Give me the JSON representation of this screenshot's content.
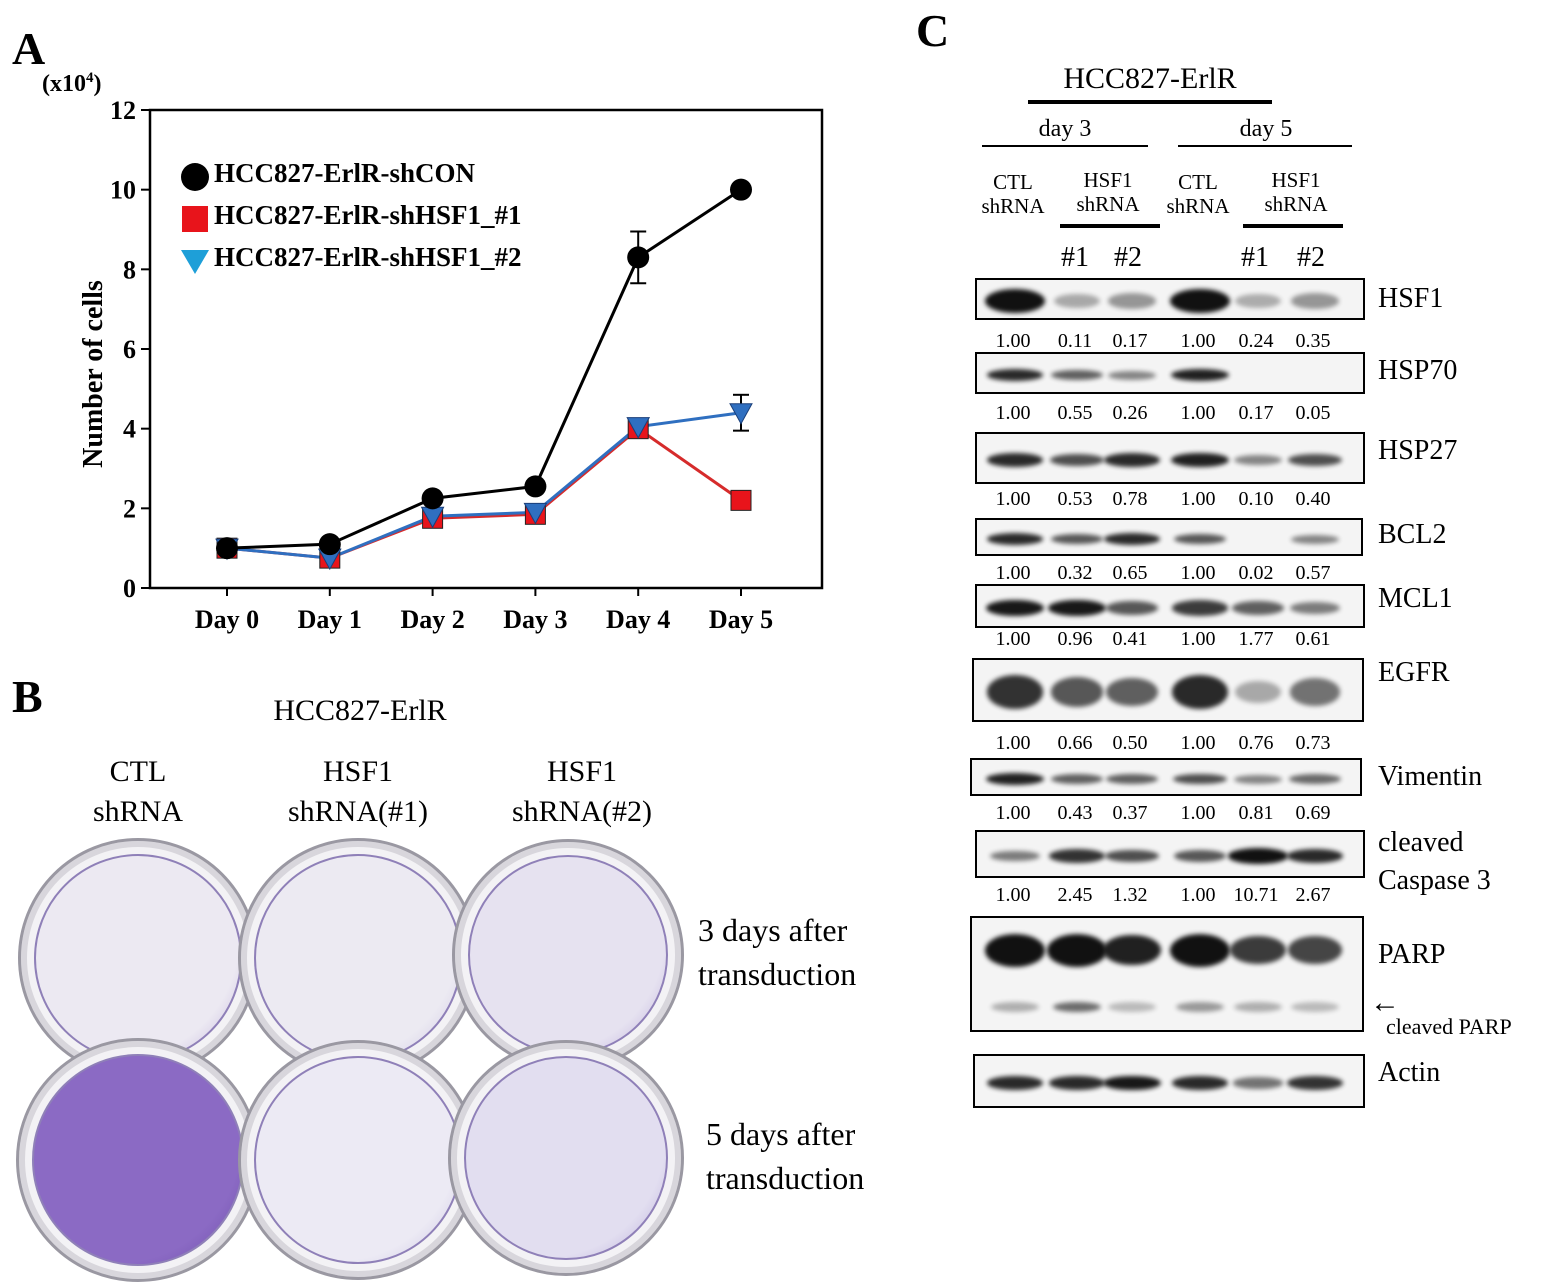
{
  "panel_a": {
    "letter": "A",
    "multiplier": "(x10",
    "multiplier_exp": "4",
    "multiplier_close": ")",
    "legend": [
      {
        "label": "HCC827-ErlR-shCON",
        "color": "#000000",
        "marker": "circle-icon"
      },
      {
        "label": "HCC827-ErlR-shHSF1_#1",
        "color": "#e8141b",
        "marker": "square-icon"
      },
      {
        "label": "HCC827-ErlR-shHSF1_#2",
        "color": "#1e9fd8",
        "marker": "triangle-down-icon"
      }
    ]
  },
  "chart_data": {
    "type": "line",
    "title": "",
    "xlabel": "",
    "ylabel": "Number of cells",
    "categories": [
      "Day 0",
      "Day 1",
      "Day 2",
      "Day 3",
      "Day 4",
      "Day 5"
    ],
    "ylim": [
      0,
      12
    ],
    "yticks": [
      0,
      2,
      4,
      6,
      8,
      10,
      12
    ],
    "series": [
      {
        "name": "HCC827-ErlR-shCON",
        "color": "#000000",
        "line_color": "#000000",
        "marker": "circle",
        "values": [
          1.0,
          1.1,
          2.25,
          2.55,
          8.3,
          10.0
        ],
        "errors": [
          0,
          0,
          0,
          0,
          0.65,
          0
        ]
      },
      {
        "name": "HCC827-ErlR-shHSF1_#1",
        "color": "#e8141b",
        "line_color": "#d62b2b",
        "marker": "square",
        "values": [
          1.0,
          0.75,
          1.75,
          1.85,
          4.0,
          2.2
        ],
        "errors": [
          0,
          0,
          0,
          0,
          0,
          0
        ]
      },
      {
        "name": "HCC827-ErlR-shHSF1_#2",
        "color": "#1e9fd8",
        "line_color": "#2f6fc0",
        "marker": "triangle-down",
        "values": [
          1.0,
          0.75,
          1.8,
          1.9,
          4.05,
          4.4
        ],
        "errors": [
          0,
          0,
          0,
          0,
          0,
          0.45
        ]
      }
    ]
  },
  "panel_b": {
    "letter": "B",
    "title": "HCC827-ErlR",
    "columns": [
      {
        "line1": "CTL",
        "line2": "shRNA"
      },
      {
        "line1": "HSF1",
        "line2": "shRNA(#1)"
      },
      {
        "line1": "HSF1",
        "line2": "shRNA(#2)"
      }
    ],
    "rows": [
      {
        "line1": "3 days after",
        "line2": "transduction"
      },
      {
        "line1": "5 days after",
        "line2": "transduction"
      }
    ]
  },
  "panel_c": {
    "letter": "C",
    "title": "HCC827-ErlR",
    "day_labels": [
      "day 3",
      "day 5"
    ],
    "ctl": {
      "line1": "CTL",
      "line2": "shRNA"
    },
    "hsf1": {
      "line1": "HSF1",
      "line2": "shRNA"
    },
    "lane_ids": [
      "#1",
      "#2",
      "#1",
      "#2"
    ],
    "blots": [
      {
        "name": "HSF1",
        "quant": [
          "1.00",
          "0.11",
          "0.17",
          "1.00",
          "0.24",
          "0.35"
        ]
      },
      {
        "name": "HSP70",
        "quant": [
          "1.00",
          "0.55",
          "0.26",
          "1.00",
          "0.17",
          "0.05"
        ]
      },
      {
        "name": "HSP27",
        "quant": [
          "1.00",
          "0.53",
          "0.78",
          "1.00",
          "0.10",
          "0.40"
        ]
      },
      {
        "name": "BCL2",
        "quant": [
          "1.00",
          "0.32",
          "0.65",
          "1.00",
          "0.02",
          "0.57"
        ]
      },
      {
        "name": "MCL1",
        "quant": [
          "1.00",
          "0.96",
          "0.41",
          "1.00",
          "1.77",
          "0.61"
        ]
      },
      {
        "name": "EGFR",
        "quant": [
          "1.00",
          "0.66",
          "0.50",
          "1.00",
          "0.76",
          "0.73"
        ]
      },
      {
        "name": "Vimentin",
        "quant": [
          "1.00",
          "0.43",
          "0.37",
          "1.00",
          "0.81",
          "0.69"
        ]
      },
      {
        "name": "cleaved",
        "name2": "Caspase 3",
        "quant": [
          "1.00",
          "2.45",
          "1.32",
          "1.00",
          "10.71",
          "2.67"
        ]
      },
      {
        "name": "PARP"
      },
      {
        "name": "Actin"
      }
    ],
    "cleaved_parp": "cleaved PARP"
  }
}
